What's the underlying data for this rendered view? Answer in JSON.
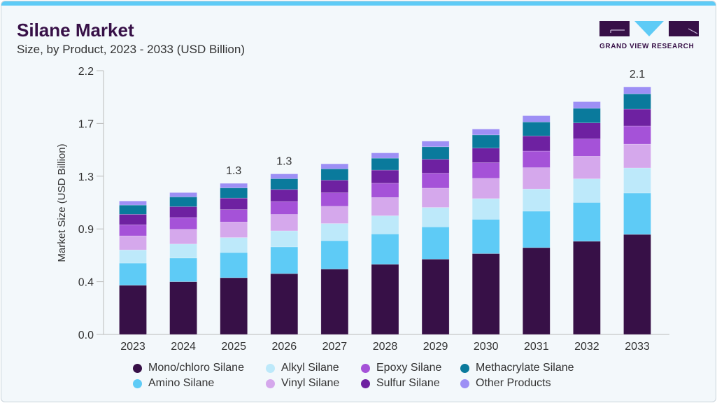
{
  "header": {
    "title": "Silane Market",
    "subtitle": "Size, by Product, 2023 - 2033 (USD Billion)"
  },
  "logo": {
    "text": "GRAND VIEW RESEARCH",
    "colors": {
      "dark": "#371047",
      "accent": "#5ecbf6"
    }
  },
  "chart_data": {
    "type": "bar",
    "stacked": true,
    "title": "Silane Market",
    "subtitle": "Size, by Product, 2023 - 2033 (USD Billion)",
    "xlabel": "",
    "ylabel": "Market Size (USD Billion)",
    "ylim": [
      0,
      2.2
    ],
    "yticks": [
      "0.0",
      "0.4",
      "0.9",
      "1.3",
      "1.7",
      "2.2"
    ],
    "grid": false,
    "legend_position": "bottom",
    "categories": [
      "2023",
      "2024",
      "2025",
      "2026",
      "2027",
      "2028",
      "2029",
      "2030",
      "2031",
      "2032",
      "2033"
    ],
    "series": [
      {
        "name": "Mono/chloro Silane",
        "color": "#371047",
        "values": [
          0.41,
          0.44,
          0.473,
          0.507,
          0.545,
          0.585,
          0.628,
          0.674,
          0.724,
          0.777,
          0.834
        ]
      },
      {
        "name": "Amino Silane",
        "color": "#5ecbf6",
        "values": [
          0.185,
          0.197,
          0.21,
          0.223,
          0.237,
          0.253,
          0.269,
          0.286,
          0.304,
          0.324,
          0.345
        ]
      },
      {
        "name": "Alkyl Silane",
        "color": "#bde9fa",
        "values": [
          0.11,
          0.117,
          0.125,
          0.134,
          0.143,
          0.152,
          0.162,
          0.173,
          0.185,
          0.197,
          0.21
        ]
      },
      {
        "name": "Vinyl Silane",
        "color": "#d5a8ec",
        "values": [
          0.117,
          0.123,
          0.13,
          0.137,
          0.144,
          0.152,
          0.161,
          0.169,
          0.178,
          0.188,
          0.198
        ]
      },
      {
        "name": "Epoxy Silane",
        "color": "#a552d8",
        "values": [
          0.093,
          0.098,
          0.103,
          0.108,
          0.113,
          0.119,
          0.125,
          0.131,
          0.138,
          0.145,
          0.152
        ]
      },
      {
        "name": "Sulfur Silane",
        "color": "#6e21a1",
        "values": [
          0.087,
          0.091,
          0.096,
          0.1,
          0.105,
          0.11,
          0.116,
          0.121,
          0.127,
          0.133,
          0.14
        ]
      },
      {
        "name": "Methacrylate Silane",
        "color": "#0a7a9c",
        "values": [
          0.077,
          0.081,
          0.085,
          0.09,
          0.094,
          0.099,
          0.104,
          0.11,
          0.116,
          0.122,
          0.128
        ]
      },
      {
        "name": "Other Products",
        "color": "#9d8ff5",
        "values": [
          0.034,
          0.036,
          0.038,
          0.04,
          0.042,
          0.044,
          0.047,
          0.049,
          0.052,
          0.055,
          0.058
        ]
      }
    ],
    "data_labels": [
      {
        "category": "2025",
        "text": "1.3"
      },
      {
        "category": "2026",
        "text": "1.3"
      },
      {
        "category": "2033",
        "text": "2.1"
      }
    ]
  }
}
